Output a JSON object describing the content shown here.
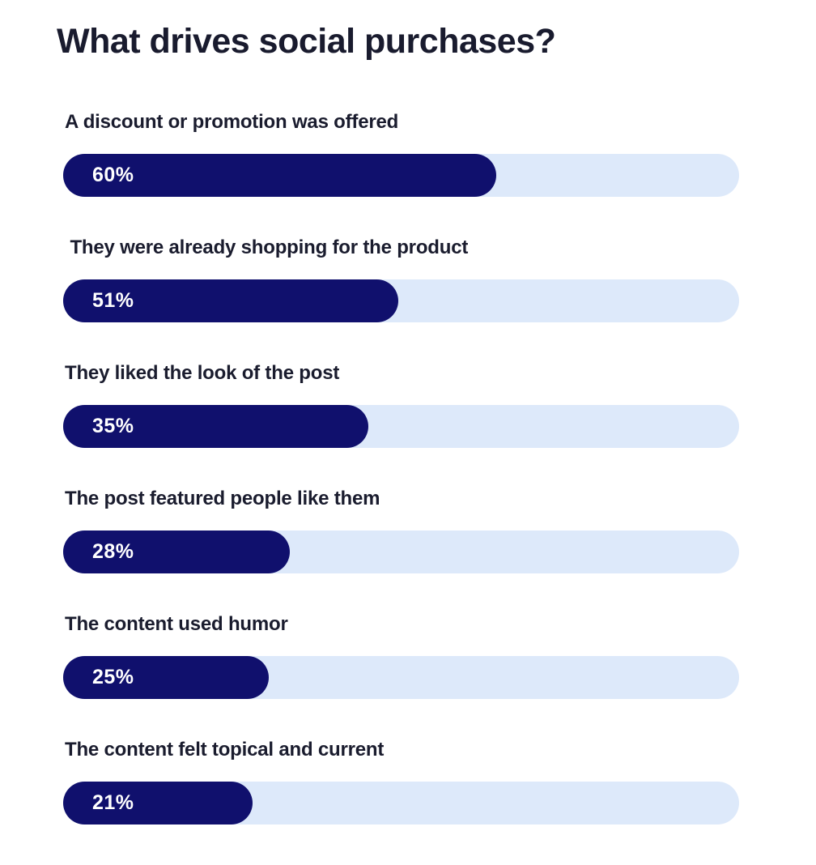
{
  "page": {
    "background_color": "#ffffff"
  },
  "chart_data": {
    "type": "bar",
    "orientation": "horizontal",
    "title": "What drives social purchases?",
    "categories": [
      "A discount or promotion was offered",
      "They were already shopping for the product",
      "They liked the look of the post",
      "The post featured people like them",
      "The content used humor",
      "The content felt topical and current"
    ],
    "values": [
      60,
      51,
      35,
      28,
      25,
      21
    ],
    "unit": "%",
    "xlabel": "",
    "ylabel": "",
    "xlim": [
      0,
      100
    ],
    "grid": false,
    "legend": false,
    "value_labels_inside_bar": true,
    "colors": {
      "bar_fill": "#10106d",
      "bar_track": "#dde9fa",
      "value_label_text": "#ffffff",
      "category_label_text": "#1a1c2e",
      "title_text": "#191b2e"
    },
    "rows": [
      {
        "label": "A discount or promotion was offered",
        "value": 60,
        "value_label": "60%",
        "fill_pct_visual": 64.1
      },
      {
        "label": " They were already shopping for the product",
        "value": 51,
        "value_label": "51%",
        "fill_pct_visual": 49.6
      },
      {
        "label": "They liked the look of the post",
        "value": 35,
        "value_label": "35%",
        "fill_pct_visual": 45.1
      },
      {
        "label": "The post featured people like them",
        "value": 28,
        "value_label": "28%",
        "fill_pct_visual": 33.5
      },
      {
        "label": "The content used humor",
        "value": 25,
        "value_label": "25%",
        "fill_pct_visual": 30.4
      },
      {
        "label": "The content felt topical and current",
        "value": 21,
        "value_label": "21%",
        "fill_pct_visual": 28.0
      }
    ]
  }
}
